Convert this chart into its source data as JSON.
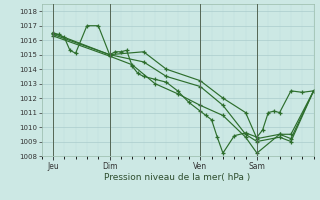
{
  "background_color": "#cce8e4",
  "grid_color_major": "#aacccc",
  "grid_color_minor": "#bbdddd",
  "line_color": "#2d6e2d",
  "title": "Pression niveau de la mer( hPa )",
  "ylim": [
    1008,
    1018.5
  ],
  "yticks": [
    1008,
    1009,
    1010,
    1011,
    1012,
    1013,
    1014,
    1015,
    1016,
    1017,
    1018
  ],
  "xtick_labels": [
    "Jeu",
    "Dim",
    "Ven",
    "Sam"
  ],
  "xtick_positions": [
    2,
    12,
    28,
    38
  ],
  "vline_positions": [
    2,
    12,
    28,
    38
  ],
  "xlim": [
    0,
    48
  ],
  "series1_x": [
    2,
    3,
    4,
    5,
    6,
    8,
    10,
    12,
    13,
    14,
    15,
    16,
    17,
    18,
    20,
    22,
    24,
    26,
    28,
    29,
    30,
    31,
    32,
    34,
    36,
    38,
    39,
    40,
    41,
    42,
    44,
    46,
    48
  ],
  "series1_y": [
    1016.5,
    1016.4,
    1016.2,
    1015.3,
    1015.1,
    1017.0,
    1017.0,
    1015.0,
    1015.2,
    1015.2,
    1015.3,
    1014.2,
    1013.7,
    1013.5,
    1013.3,
    1013.1,
    1012.5,
    1011.7,
    1011.1,
    1010.8,
    1010.5,
    1009.3,
    1008.2,
    1009.4,
    1009.6,
    1009.3,
    1009.8,
    1011.0,
    1011.1,
    1011.0,
    1012.5,
    1012.4,
    1012.5
  ],
  "series2_x": [
    2,
    12,
    18,
    22,
    28,
    32,
    36,
    38,
    42,
    44,
    48
  ],
  "series2_y": [
    1016.5,
    1015.0,
    1015.2,
    1014.0,
    1013.2,
    1012.0,
    1011.0,
    1009.2,
    1009.5,
    1009.2,
    1012.5
  ],
  "series3_x": [
    2,
    12,
    18,
    22,
    28,
    32,
    36,
    38,
    42,
    44,
    48
  ],
  "series3_y": [
    1016.4,
    1015.0,
    1014.5,
    1013.5,
    1012.8,
    1011.5,
    1009.5,
    1009.0,
    1009.3,
    1009.0,
    1012.5
  ],
  "series4_x": [
    2,
    12,
    16,
    20,
    24,
    28,
    32,
    36,
    38,
    42,
    44,
    48
  ],
  "series4_y": [
    1016.3,
    1014.9,
    1014.3,
    1013.0,
    1012.3,
    1011.5,
    1010.8,
    1009.3,
    1008.2,
    1009.5,
    1009.5,
    1012.5
  ]
}
